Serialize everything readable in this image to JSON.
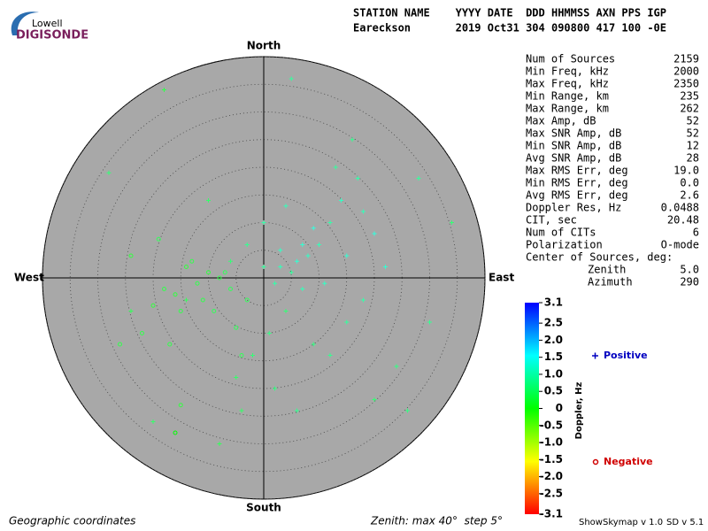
{
  "logo": {
    "small": "Lowell",
    "big": "DIGISONDE"
  },
  "header": {
    "columns": "STATION NAME    YYYY DATE  DDD HHMMSS AXN PPS IGP",
    "values": "Eareckson       2019 Oct31 304 090800 417 100 -0E"
  },
  "stats": {
    "rows": [
      [
        "Num of Sources",
        "2159"
      ],
      [
        "Min Freq, kHz",
        "2000"
      ],
      [
        "Max Freq, kHz",
        "2350"
      ],
      [
        "Min Range, km",
        "235"
      ],
      [
        "Max Range, km",
        "262"
      ],
      [
        "Max Amp, dB",
        "52"
      ],
      [
        "Max SNR Amp, dB",
        "52"
      ],
      [
        "Min SNR Amp, dB",
        "12"
      ],
      [
        "Avg SNR Amp, dB",
        "28"
      ],
      [
        "Max RMS Err, deg",
        "19.0"
      ],
      [
        "Min RMS Err, deg",
        "0.0"
      ],
      [
        "Avg RMS Err, deg",
        "2.6"
      ],
      [
        "Doppler Res, Hz",
        "0.0488"
      ],
      [
        "CIT, sec",
        "20.48"
      ],
      [
        "Num of CITs",
        "6"
      ],
      [
        "Polarization",
        "O-mode"
      ]
    ],
    "center_heading": "Center of Sources, deg:",
    "center": [
      [
        "Zenith",
        "5.0"
      ],
      [
        "Azimuth",
        "290"
      ]
    ]
  },
  "footer": {
    "left": "Geographic coordinates",
    "middle": "Zenith: max 40°  step 5°",
    "version1": "ShowSkymap v 1.0",
    "version2": "SD v 5.1"
  },
  "chart_data": {
    "type": "polar-scatter",
    "directions": {
      "north": "North",
      "south": "South",
      "east": "East",
      "west": "West"
    },
    "rlim": [
      0,
      40
    ],
    "rticks": [
      5,
      10,
      15,
      20,
      25,
      30,
      35,
      40
    ],
    "colorbar": {
      "label": "Doppler, Hz",
      "clim": [
        -3.1,
        3.1
      ],
      "ticks": [
        3.1,
        2.5,
        {
          "value": 2,
          "label": "2.0"
        },
        1.5,
        {
          "value": 1,
          "label": "1.0"
        },
        0.5,
        0,
        -0.5,
        {
          "value": -1,
          "label": "-1.0"
        },
        -1.5,
        {
          "value": -2,
          "label": "-2.0"
        },
        -2.5,
        -3.1
      ]
    },
    "series": [
      {
        "name": "Positive",
        "marker": "plus",
        "color": "#0000c0",
        "x": [
          3,
          5,
          2,
          6,
          8,
          10,
          12,
          14,
          13,
          16,
          18,
          20,
          22,
          18,
          15,
          12,
          9,
          4,
          1,
          -2,
          -5,
          -8,
          -20,
          -24,
          -18,
          -28,
          5,
          0,
          -3,
          -6,
          7,
          11,
          15,
          9,
          4,
          17,
          24,
          30,
          34,
          28,
          -10,
          -14,
          2,
          6,
          20,
          26,
          -4,
          3,
          7,
          0
        ],
        "y": [
          2,
          1,
          -1,
          3,
          4,
          6,
          10,
          14,
          20,
          25,
          12,
          8,
          2,
          -4,
          -8,
          -14,
          -12,
          -6,
          -10,
          -14,
          -18,
          -30,
          -26,
          -6,
          34,
          19,
          36,
          10,
          6,
          3,
          -2,
          -1,
          4,
          9,
          13,
          18,
          -16,
          -8,
          10,
          18,
          14,
          -4,
          -20,
          -24,
          -22,
          -24,
          -24,
          5,
          6,
          2
        ],
        "doppler": [
          1.0,
          0.8,
          0.9,
          1.2,
          1.1,
          1.0,
          0.9,
          1.1,
          0.8,
          0.7,
          1.0,
          1.3,
          1.2,
          0.9,
          0.8,
          0.7,
          0.6,
          0.5,
          0.6,
          0.5,
          0.4,
          0.3,
          0.4,
          0.3,
          0.2,
          0.5,
          0.8,
          0.9,
          0.7,
          0.5,
          1.0,
          1.1,
          1.2,
          1.3,
          1.0,
          0.9,
          0.6,
          0.7,
          0.5,
          0.8,
          0.4,
          0.3,
          0.6,
          0.7,
          0.5,
          0.6,
          0.4,
          1.1,
          1.2,
          0.8
        ]
      },
      {
        "name": "Negative",
        "marker": "circle",
        "color": "#d00000",
        "x": [
          -8,
          -10,
          -12,
          -6,
          -14,
          -11,
          -9,
          -16,
          -13,
          -7,
          -15,
          -20,
          -18,
          -22,
          -24,
          -17,
          -16,
          -15,
          -5,
          -3,
          -4,
          -19,
          -26
        ],
        "y": [
          0,
          1,
          -1,
          -2,
          2,
          -4,
          -6,
          -3,
          3,
          1,
          -6,
          -5,
          -2,
          -10,
          4,
          -12,
          -28,
          -23,
          -9,
          -4,
          -14,
          7,
          -12
        ],
        "doppler": [
          0.2,
          0.1,
          0.2,
          0.3,
          0.1,
          0.2,
          0.3,
          0.1,
          0.2,
          0.3,
          0.2,
          0.1,
          0.2,
          0.2,
          0.1,
          0.2,
          0.0,
          0.1,
          0.3,
          0.3,
          0.3,
          0.3,
          0.2
        ]
      }
    ]
  }
}
